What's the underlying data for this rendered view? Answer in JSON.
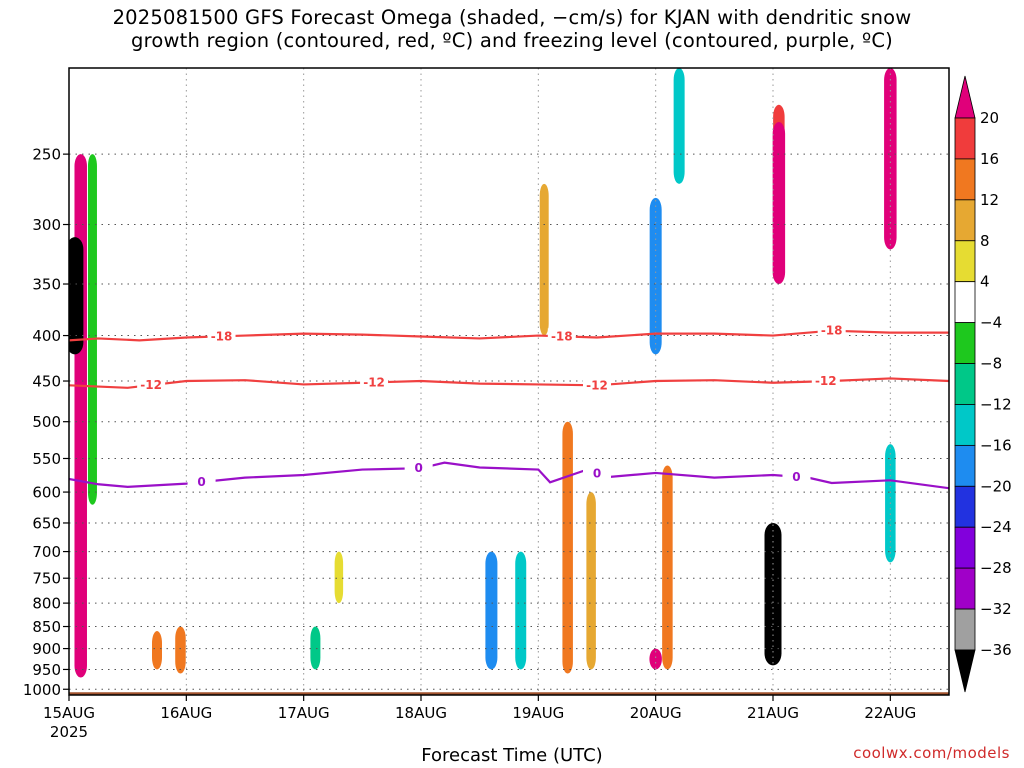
{
  "title_line1": "2025081500 GFS Forecast Omega (shaded, −cm/s) for KJAN with dendritic snow",
  "title_line2": "growth region (contoured, red, ºC) and freezing level (contoured, purple, ºC)",
  "credit": "coolwx.com/models",
  "colors": {
    "dgz_contour": "#f04040",
    "freezing_contour": "#9a10c8",
    "ground": "#a0522d",
    "grid": "#555555"
  },
  "chart_data": {
    "type": "heatmap",
    "xlabel": "Forecast Time (UTC)",
    "ylabel": "",
    "x_ticks": [
      "15AUG",
      "16AUG",
      "17AUG",
      "18AUG",
      "19AUG",
      "20AUG",
      "21AUG",
      "22AUG"
    ],
    "x_tick_year": "2025",
    "x_range_days": [
      0,
      7.5
    ],
    "y_ticks": [
      "250",
      "300",
      "350",
      "400",
      "450",
      "500",
      "550",
      "600",
      "650",
      "700",
      "750",
      "800",
      "850",
      "900",
      "950",
      "1000"
    ],
    "y_range_hpa": [
      200,
      1015
    ],
    "y_scale": "pressure",
    "colorbar": {
      "labels": [
        "20",
        "16",
        "12",
        "8",
        "4",
        "-4",
        "-8",
        "-12",
        "-16",
        "-20",
        "-24",
        "-28",
        "-32",
        "-36"
      ],
      "bins": [
        {
          "lo": 20,
          "hi": null,
          "color": "#e0007a"
        },
        {
          "lo": 16,
          "hi": 20,
          "color": "#f03c3c"
        },
        {
          "lo": 12,
          "hi": 16,
          "color": "#f07820"
        },
        {
          "lo": 8,
          "hi": 12,
          "color": "#e6a832"
        },
        {
          "lo": 4,
          "hi": 8,
          "color": "#e6dc32"
        },
        {
          "lo": -4,
          "hi": 4,
          "color": "#ffffff"
        },
        {
          "lo": -8,
          "hi": -4,
          "color": "#1ec81e"
        },
        {
          "lo": -12,
          "hi": -8,
          "color": "#00c888"
        },
        {
          "lo": -16,
          "hi": -12,
          "color": "#00c8c8"
        },
        {
          "lo": -20,
          "hi": -16,
          "color": "#1e8cf0"
        },
        {
          "lo": -24,
          "hi": -20,
          "color": "#2232e0"
        },
        {
          "lo": -28,
          "hi": -24,
          "color": "#8200dc"
        },
        {
          "lo": -32,
          "hi": -28,
          "color": "#a000c8"
        },
        {
          "lo": -36,
          "hi": -32,
          "color": "#a0a0a0"
        },
        {
          "lo": null,
          "hi": -36,
          "color": "#000000"
        }
      ]
    },
    "contours": [
      {
        "label": "-18",
        "color": "#f04040",
        "points": [
          [
            0,
            405
          ],
          [
            0.25,
            403
          ],
          [
            0.6,
            405
          ],
          [
            1.0,
            402
          ],
          [
            1.5,
            400
          ],
          [
            2.0,
            398
          ],
          [
            2.5,
            399
          ],
          [
            3.0,
            401
          ],
          [
            3.5,
            403
          ],
          [
            4.0,
            400
          ],
          [
            4.5,
            402
          ],
          [
            5.0,
            398
          ],
          [
            5.5,
            398
          ],
          [
            6.0,
            400
          ],
          [
            6.5,
            395
          ],
          [
            7.0,
            397
          ],
          [
            7.5,
            397
          ]
        ],
        "label_days": [
          1.3,
          4.2,
          6.5
        ]
      },
      {
        "label": "-12",
        "color": "#f04040",
        "points": [
          [
            0,
            455
          ],
          [
            0.5,
            458
          ],
          [
            1.0,
            450
          ],
          [
            1.5,
            449
          ],
          [
            2.0,
            454
          ],
          [
            2.5,
            452
          ],
          [
            3.0,
            450
          ],
          [
            3.5,
            453
          ],
          [
            4.0,
            454
          ],
          [
            4.5,
            455
          ],
          [
            5.0,
            450
          ],
          [
            5.5,
            449
          ],
          [
            6.0,
            452
          ],
          [
            6.5,
            450
          ],
          [
            7.0,
            447
          ],
          [
            7.5,
            450
          ]
        ],
        "label_days": [
          0.7,
          2.6,
          4.5,
          6.45
        ]
      },
      {
        "label": "0",
        "color": "#9a10c8",
        "points": [
          [
            0,
            580
          ],
          [
            0.25,
            588
          ],
          [
            0.5,
            592
          ],
          [
            1.0,
            587
          ],
          [
            1.5,
            578
          ],
          [
            2.0,
            574
          ],
          [
            2.5,
            566
          ],
          [
            3.0,
            564
          ],
          [
            3.2,
            556
          ],
          [
            3.5,
            563
          ],
          [
            4.0,
            566
          ],
          [
            4.1,
            585
          ],
          [
            4.4,
            567
          ],
          [
            4.6,
            577
          ],
          [
            5.0,
            571
          ],
          [
            5.5,
            578
          ],
          [
            6.0,
            574
          ],
          [
            6.3,
            578
          ],
          [
            6.5,
            586
          ],
          [
            7.0,
            582
          ],
          [
            7.5,
            594
          ]
        ],
        "label_days": [
          1.13,
          2.98,
          4.5,
          6.2
        ]
      }
    ],
    "omega_features": [
      {
        "day": 0.1,
        "p_top": 250,
        "p_bot": 970,
        "value": 22
      },
      {
        "day": 0.05,
        "p_top": 310,
        "p_bot": 420,
        "value": -40
      },
      {
        "day": 0.2,
        "p_top": 250,
        "p_bot": 620,
        "value": -8
      },
      {
        "day": 0.75,
        "p_top": 860,
        "p_bot": 950,
        "value": 12
      },
      {
        "day": 0.95,
        "p_top": 850,
        "p_bot": 960,
        "value": 14
      },
      {
        "day": 2.1,
        "p_top": 850,
        "p_bot": 950,
        "value": -12
      },
      {
        "day": 2.3,
        "p_top": 700,
        "p_bot": 800,
        "value": 6
      },
      {
        "day": 3.6,
        "p_top": 700,
        "p_bot": 950,
        "value": -20
      },
      {
        "day": 3.85,
        "p_top": 700,
        "p_bot": 950,
        "value": -16
      },
      {
        "day": 4.25,
        "p_top": 500,
        "p_bot": 960,
        "value": 14
      },
      {
        "day": 4.45,
        "p_top": 600,
        "p_bot": 950,
        "value": 10
      },
      {
        "day": 4.05,
        "p_top": 270,
        "p_bot": 400,
        "value": 8
      },
      {
        "day": 5.0,
        "p_top": 280,
        "p_bot": 420,
        "value": -20
      },
      {
        "day": 5.1,
        "p_top": 560,
        "p_bot": 950,
        "value": 14
      },
      {
        "day": 5.0,
        "p_top": 900,
        "p_bot": 950,
        "value": 22
      },
      {
        "day": 6.0,
        "p_top": 650,
        "p_bot": 940,
        "value": -40
      },
      {
        "day": 6.05,
        "p_top": 220,
        "p_bot": 320,
        "value": 18
      },
      {
        "day": 6.05,
        "p_top": 230,
        "p_bot": 350,
        "value": 22
      },
      {
        "day": 7.0,
        "p_top": 200,
        "p_bot": 320,
        "value": 22
      },
      {
        "day": 7.0,
        "p_top": 530,
        "p_bot": 720,
        "value": -14
      },
      {
        "day": 5.2,
        "p_top": 200,
        "p_bot": 270,
        "value": -16
      }
    ]
  }
}
